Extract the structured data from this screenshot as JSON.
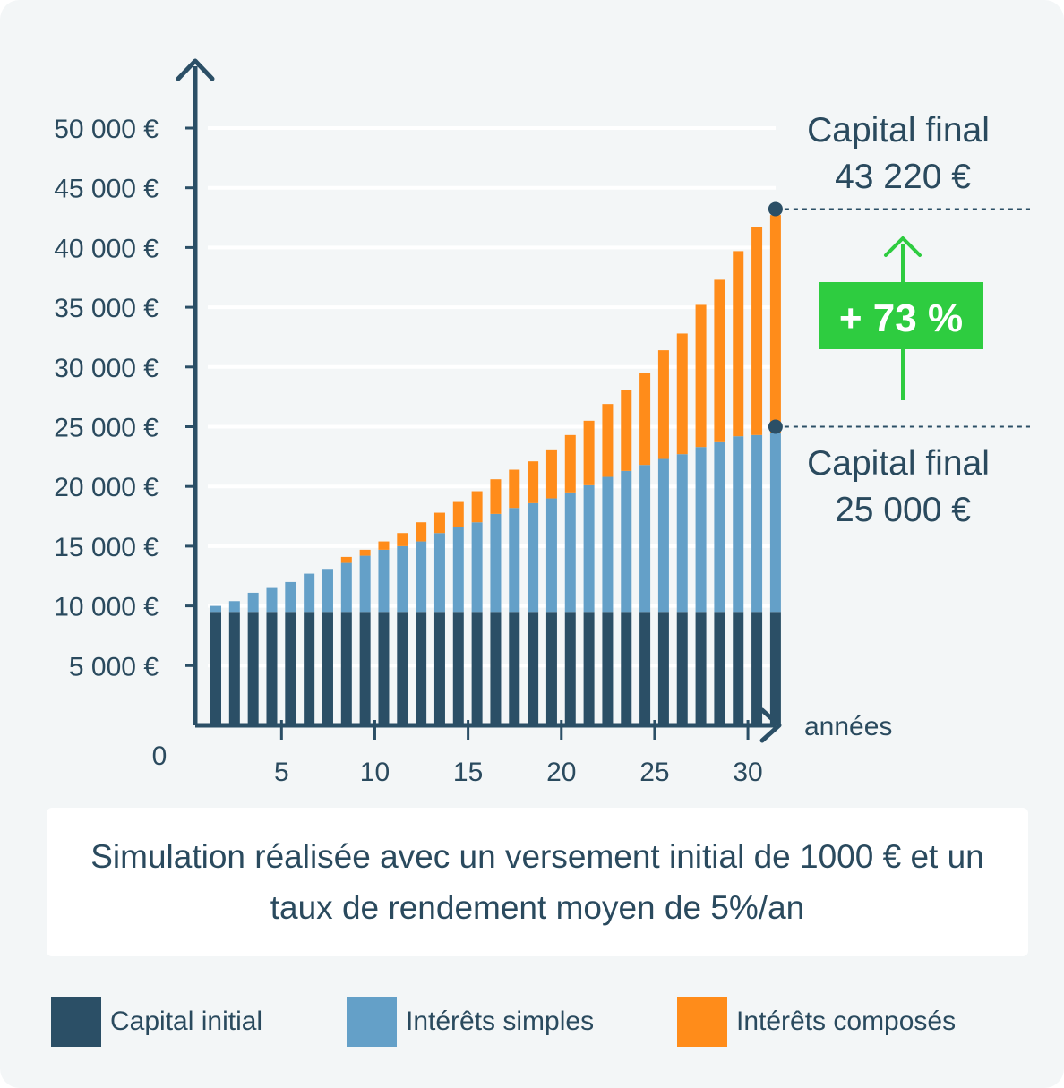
{
  "chart_data": {
    "type": "bar",
    "stacked": true,
    "x": [
      1,
      2,
      3,
      4,
      5,
      6,
      7,
      8,
      9,
      10,
      11,
      12,
      13,
      14,
      15,
      16,
      17,
      18,
      19,
      20,
      21,
      22,
      23,
      24,
      25,
      26,
      27,
      28,
      29,
      30,
      31
    ],
    "x_ticks": [
      5,
      10,
      15,
      20,
      25,
      30
    ],
    "xlabel": "années",
    "y_ticks": [
      {
        "value": 0,
        "label": "0"
      },
      {
        "value": 5000,
        "label": "5 000 €"
      },
      {
        "value": 10000,
        "label": "10 000 €"
      },
      {
        "value": 15000,
        "label": "15 000 €"
      },
      {
        "value": 20000,
        "label": "20 000 €"
      },
      {
        "value": 25000,
        "label": "25 000 €"
      },
      {
        "value": 30000,
        "label": "30 000 €"
      },
      {
        "value": 35000,
        "label": "35 000 €"
      },
      {
        "value": 40000,
        "label": "40 000 €"
      },
      {
        "value": 45000,
        "label": "45 000 €"
      },
      {
        "value": 50000,
        "label": "50 000 €"
      }
    ],
    "ylim": [
      0,
      50000
    ],
    "grid": true,
    "series": [
      {
        "name": "Capital initial",
        "color": "#2b4f66",
        "values": [
          9500,
          9500,
          9500,
          9500,
          9500,
          9500,
          9500,
          9500,
          9500,
          9500,
          9500,
          9500,
          9500,
          9500,
          9500,
          9500,
          9500,
          9500,
          9500,
          9500,
          9500,
          9500,
          9500,
          9500,
          9500,
          9500,
          9500,
          9500,
          9500,
          9500,
          9500
        ]
      },
      {
        "name": "Intérêts simples",
        "color": "#64a0c8",
        "values": [
          500,
          900,
          1600,
          2000,
          2500,
          3200,
          3600,
          4100,
          4700,
          5200,
          5500,
          5900,
          6600,
          7100,
          7500,
          8200,
          8700,
          9100,
          9500,
          10000,
          10600,
          11300,
          11800,
          12300,
          12800,
          13200,
          13800,
          14200,
          14700,
          14800,
          15000
        ]
      },
      {
        "name": "Intérêts composés",
        "color": "#ff8c1a",
        "values": [
          0,
          0,
          0,
          0,
          0,
          0,
          0,
          500,
          500,
          700,
          1100,
          1600,
          1700,
          2100,
          2600,
          2900,
          3200,
          3500,
          4100,
          4800,
          5400,
          6100,
          6800,
          7700,
          9100,
          10100,
          11900,
          13600,
          15500,
          17400,
          18220
        ]
      }
    ],
    "annotations": {
      "top_line1": "Capital final",
      "top_line2": "43 220 €",
      "top_value": 43220,
      "bottom_line1": "Capital final",
      "bottom_line2": "25 000 €",
      "bottom_value": 25000,
      "gain": "+ 73 %",
      "gain_color": "#2ecc40"
    }
  },
  "caption": "Simulation réalisée avec un versement initial de 1000 € et un taux de rendement moyen de 5%/an",
  "legend": [
    {
      "label": "Capital initial",
      "color": "#2b4f66"
    },
    {
      "label": "Intérêts simples",
      "color": "#64a0c8"
    },
    {
      "label": "Intérêts composés",
      "color": "#ff8c1a"
    }
  ]
}
